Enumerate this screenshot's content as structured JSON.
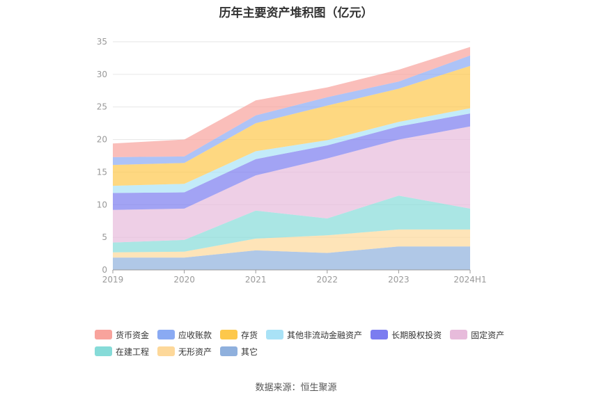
{
  "chart_data": {
    "type": "area",
    "stacked": true,
    "title": "历年主要资产堆积图（亿元）",
    "categories": [
      "2019",
      "2020",
      "2021",
      "2022",
      "2023",
      "2024H1"
    ],
    "ylim": [
      0,
      35
    ],
    "yticks": [
      0,
      5,
      10,
      15,
      20,
      25,
      30,
      35
    ],
    "grid": true,
    "legend_position": "bottom",
    "series": [
      {
        "name": "其它",
        "color": "#8fb0dd",
        "values": [
          1.9,
          1.9,
          3.0,
          2.6,
          3.6,
          3.6
        ]
      },
      {
        "name": "无形资产",
        "color": "#fdd89a",
        "values": [
          0.8,
          0.9,
          1.8,
          2.7,
          2.6,
          2.6
        ]
      },
      {
        "name": "在建工程",
        "color": "#86dbd8",
        "values": [
          1.5,
          1.8,
          4.3,
          2.6,
          5.2,
          3.2
        ]
      },
      {
        "name": "固定资产",
        "color": "#e7bbdb",
        "values": [
          5.0,
          4.8,
          5.4,
          9.2,
          8.6,
          12.6
        ]
      },
      {
        "name": "长期股权投资",
        "color": "#7b7cf0",
        "values": [
          2.6,
          2.5,
          2.5,
          2.0,
          2.0,
          2.0
        ]
      },
      {
        "name": "其他非流动金融资产",
        "color": "#a9e2f6",
        "values": [
          1.1,
          1.3,
          1.2,
          0.8,
          0.7,
          0.8
        ]
      },
      {
        "name": "存货",
        "color": "#fdc84b",
        "values": [
          3.2,
          3.2,
          4.3,
          5.3,
          5.1,
          6.5
        ]
      },
      {
        "name": "应收账款",
        "color": "#8aaaf3",
        "values": [
          1.2,
          1.0,
          1.2,
          1.3,
          1.1,
          1.6
        ]
      },
      {
        "name": "货币资金",
        "color": "#f8a39c",
        "values": [
          2.1,
          2.6,
          2.3,
          1.5,
          1.8,
          1.3
        ]
      }
    ],
    "legend_order": [
      "货币资金",
      "应收账款",
      "存货",
      "其他非流动金融资产",
      "长期股权投资",
      "固定资产",
      "在建工程",
      "无形资产",
      "其它"
    ]
  },
  "source_text": "数据来源：恒生聚源"
}
